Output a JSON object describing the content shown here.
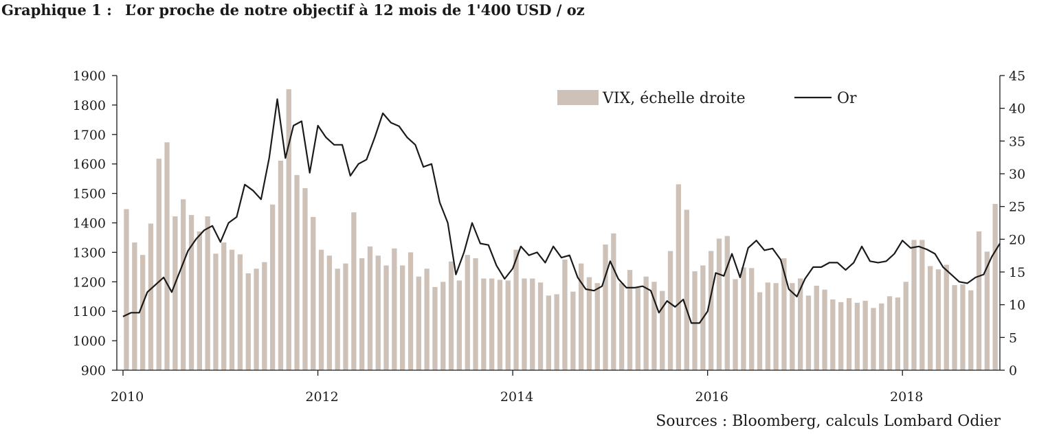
{
  "header": {
    "label": "Graphique 1 :",
    "title": "L’or proche de notre objectif à 12 mois de 1'400 USD / oz"
  },
  "source": "Sources : Bloomberg, calculs Lombard Odier",
  "chart_data": {
    "type": "bar+line",
    "title": "L’or proche de notre objectif à 12 mois de 1'400 USD / oz",
    "xlabel": "",
    "ylabel": "",
    "x_start": "2010-01",
    "x_end": "2019-01",
    "x_tick_labels": [
      "2010",
      "2012",
      "2014",
      "2016",
      "2018"
    ],
    "y_left_ticks": [
      900,
      1000,
      1100,
      1200,
      1300,
      1400,
      1500,
      1600,
      1700,
      1800,
      1900
    ],
    "y_left_lim": [
      900,
      1900
    ],
    "y_right_ticks": [
      0,
      5,
      10,
      15,
      20,
      25,
      30,
      35,
      40,
      45
    ],
    "y_right_lim": [
      0,
      45
    ],
    "legend_position": "top",
    "grid": false,
    "colors": {
      "bars": "#cdc1b8",
      "line": "#1a1a1a"
    },
    "series": [
      {
        "name": "VIX, échelle droite",
        "type": "bar",
        "axis": "right",
        "start": "2010-01",
        "frequency": "monthly",
        "values": [
          24.6,
          19.5,
          17.6,
          22.4,
          32.3,
          34.8,
          23.5,
          26.1,
          23.7,
          21.2,
          23.5,
          17.8,
          19.5,
          18.4,
          17.7,
          14.8,
          15.5,
          16.5,
          25.3,
          32.0,
          42.9,
          29.8,
          27.8,
          23.4,
          18.4,
          17.5,
          15.5,
          16.3,
          24.1,
          17.1,
          18.9,
          17.5,
          16.0,
          18.6,
          16.0,
          18.0,
          14.3,
          15.5,
          12.7,
          13.5,
          16.6,
          13.7,
          17.6,
          17.1,
          14.0,
          14.0,
          13.8,
          13.7,
          18.4,
          14.0,
          14.0,
          13.4,
          11.4,
          11.6,
          16.9,
          12.0,
          16.3,
          14.2,
          13.3,
          19.2,
          20.9,
          13.3,
          15.3,
          12.6,
          14.3,
          13.5,
          12.1,
          18.2,
          28.4,
          24.5,
          15.1,
          16.0,
          18.2,
          20.1,
          20.5,
          13.9,
          15.7,
          15.6,
          11.9,
          13.4,
          13.3,
          17.1,
          13.3,
          14.0,
          11.4,
          12.9,
          12.3,
          10.8,
          10.4,
          11.0,
          10.3,
          10.6,
          9.5,
          10.2,
          11.3,
          11.1,
          13.5,
          19.9,
          19.9,
          15.9,
          15.4,
          16.1,
          13.0,
          13.1,
          12.2,
          21.2,
          18.1,
          25.4
        ]
      },
      {
        "name": "Or",
        "type": "line",
        "axis": "left",
        "start": "2010-01",
        "frequency": "monthly",
        "values": [
          1082,
          1095,
          1095,
          1165,
          1190,
          1215,
          1165,
          1235,
          1305,
          1345,
          1375,
          1390,
          1335,
          1400,
          1420,
          1530,
          1510,
          1480,
          1620,
          1820,
          1620,
          1730,
          1745,
          1570,
          1730,
          1690,
          1665,
          1665,
          1560,
          1600,
          1615,
          1690,
          1772,
          1740,
          1728,
          1690,
          1665,
          1590,
          1600,
          1470,
          1400,
          1225,
          1300,
          1400,
          1330,
          1325,
          1255,
          1210,
          1245,
          1320,
          1290,
          1300,
          1265,
          1320,
          1282,
          1290,
          1215,
          1175,
          1170,
          1185,
          1270,
          1210,
          1180,
          1180,
          1185,
          1170,
          1095,
          1135,
          1115,
          1140,
          1060,
          1060,
          1100,
          1230,
          1220,
          1295,
          1215,
          1315,
          1340,
          1307,
          1313,
          1275,
          1175,
          1150,
          1210,
          1250,
          1250,
          1265,
          1265,
          1240,
          1265,
          1320,
          1270,
          1265,
          1270,
          1295,
          1340,
          1315,
          1320,
          1310,
          1295,
          1250,
          1225,
          1200,
          1195,
          1215,
          1225,
          1285,
          1330
        ]
      }
    ]
  }
}
